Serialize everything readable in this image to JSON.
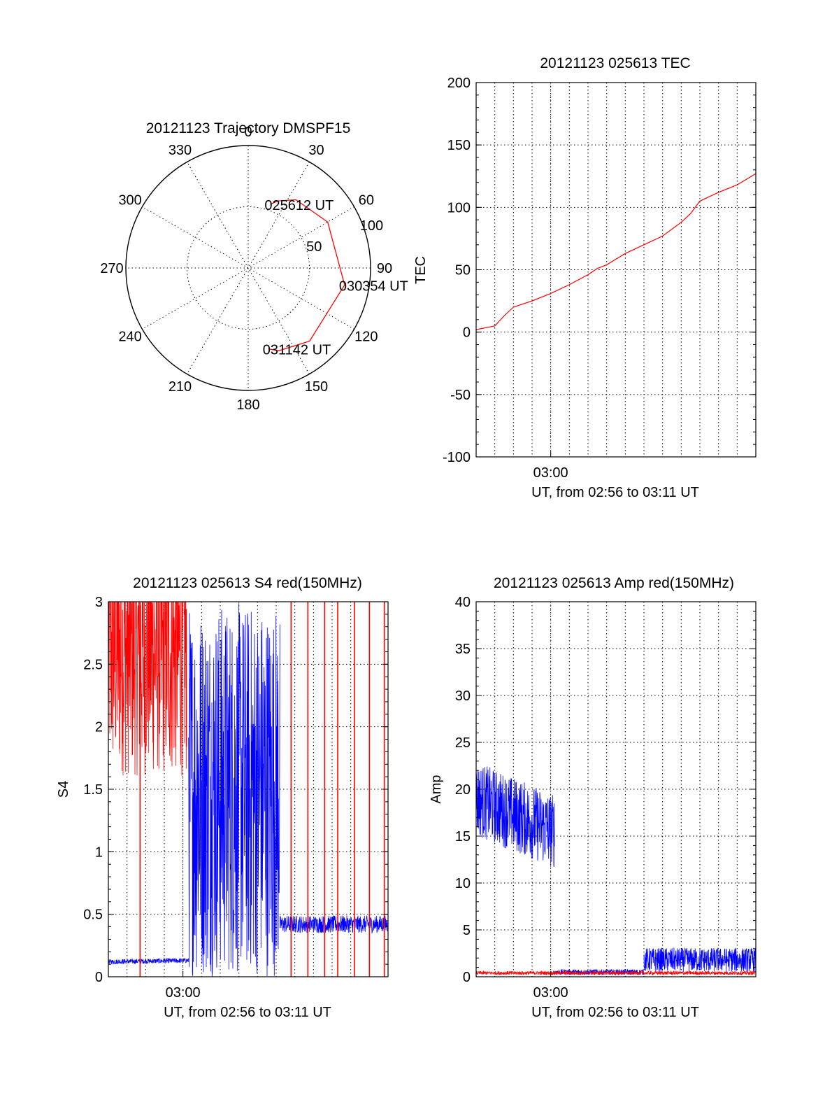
{
  "chart_data": [
    {
      "type": "polar",
      "title": "20121123 Trajectory DMSPF15",
      "azimuth_labels": [
        "0",
        "30",
        "60",
        "90",
        "120",
        "150",
        "180",
        "210",
        "240",
        "270",
        "300",
        "330"
      ],
      "radius_labels": [
        "50",
        "100"
      ],
      "rlim": [
        0,
        100
      ],
      "grid": true,
      "series": [
        {
          "color": "#ff0000",
          "points": [
            [
              19,
              55
            ],
            [
              24,
              60
            ],
            [
              35,
              68
            ],
            [
              60,
              75
            ],
            [
              100,
              80
            ],
            [
              140,
              78
            ],
            [
              160,
              72
            ],
            [
              166,
              68
            ]
          ]
        }
      ],
      "annotations": [
        {
          "text": "025612 UT",
          "az": 19,
          "r": 55
        },
        {
          "text": "030354 UT",
          "az": 100,
          "r": 80
        },
        {
          "text": "031142 UT",
          "az": 166,
          "r": 68
        }
      ]
    },
    {
      "type": "line",
      "title": "20121123 025613 TEC",
      "xlabel": "UT, from 02:56 to 03:11 UT",
      "ylabel": "TEC",
      "xlim": [
        0,
        15
      ],
      "ylim": [
        -100,
        200
      ],
      "yticks": [
        "-100",
        "-50",
        "0",
        "50",
        "100",
        "150",
        "200"
      ],
      "xticks": [
        {
          "label": "03:00",
          "x": 4
        }
      ],
      "grid": true,
      "series": [
        {
          "color": "#ff0000",
          "x": [
            0,
            1,
            1.5,
            2,
            3,
            4,
            5,
            6,
            6.5,
            7,
            8,
            9,
            10,
            11,
            11.5,
            12,
            13,
            14,
            15
          ],
          "y": [
            2,
            5,
            13,
            20,
            25,
            31,
            38,
            46,
            51,
            54,
            63,
            70,
            77,
            88,
            95,
            105,
            112,
            118,
            127
          ]
        }
      ]
    },
    {
      "type": "line",
      "title": "20121123 025613 S4 red(150MHz)",
      "xlabel": "UT, from 02:56 to 03:11 UT",
      "ylabel": "S4",
      "xlim": [
        0,
        15
      ],
      "ylim": [
        0,
        3
      ],
      "yticks": [
        "0",
        "0.5",
        "1",
        "1.5",
        "2",
        "2.5",
        "3"
      ],
      "xticks": [
        {
          "label": "03:00",
          "x": 4
        }
      ],
      "grid": true,
      "series": [
        {
          "color": "#ff0000",
          "x": [
            0,
            4.2
          ],
          "y": [
            2.6,
            2.6
          ],
          "noise": 1.0
        },
        {
          "color": "#0000ff",
          "x": [
            0,
            4.3
          ],
          "y": [
            0.12,
            0.13
          ],
          "noise": 0.02
        },
        {
          "color": "#0000ff",
          "x": [
            4.3,
            9.2
          ],
          "y": [
            1.5,
            1.5
          ],
          "noise": 1.5
        },
        {
          "color": "#0000ff",
          "x": [
            9.2,
            15
          ],
          "y": [
            0.42,
            0.42
          ],
          "noise": 0.07
        }
      ],
      "red_spikes": [
        1.7,
        9.8,
        10.7,
        11.6,
        12.3,
        13.2,
        14.0,
        14.8
      ]
    },
    {
      "type": "line",
      "title": "20121123 025613 Amp red(150MHz)",
      "xlabel": "UT, from 02:56 to 03:11 UT",
      "ylabel": "Amp",
      "xlim": [
        0,
        15
      ],
      "ylim": [
        0,
        40
      ],
      "yticks": [
        "0",
        "5",
        "10",
        "15",
        "20",
        "25",
        "30",
        "35",
        "40"
      ],
      "xticks": [
        {
          "label": "03:00",
          "x": 4
        }
      ],
      "grid": true,
      "series": [
        {
          "color": "#0000ff",
          "x": [
            0,
            4.2
          ],
          "y": [
            19,
            15.5
          ],
          "noise": 4
        },
        {
          "color": "#0000ff",
          "x": [
            4.2,
            9
          ],
          "y": [
            0.5,
            0.5
          ],
          "noise": 0.3
        },
        {
          "color": "#0000ff",
          "x": [
            9,
            15
          ],
          "y": [
            1.8,
            1.8
          ],
          "noise": 1.3
        },
        {
          "color": "#ff0000",
          "x": [
            0,
            15
          ],
          "y": [
            0.4,
            0.4
          ],
          "noise": 0.2
        }
      ]
    }
  ]
}
